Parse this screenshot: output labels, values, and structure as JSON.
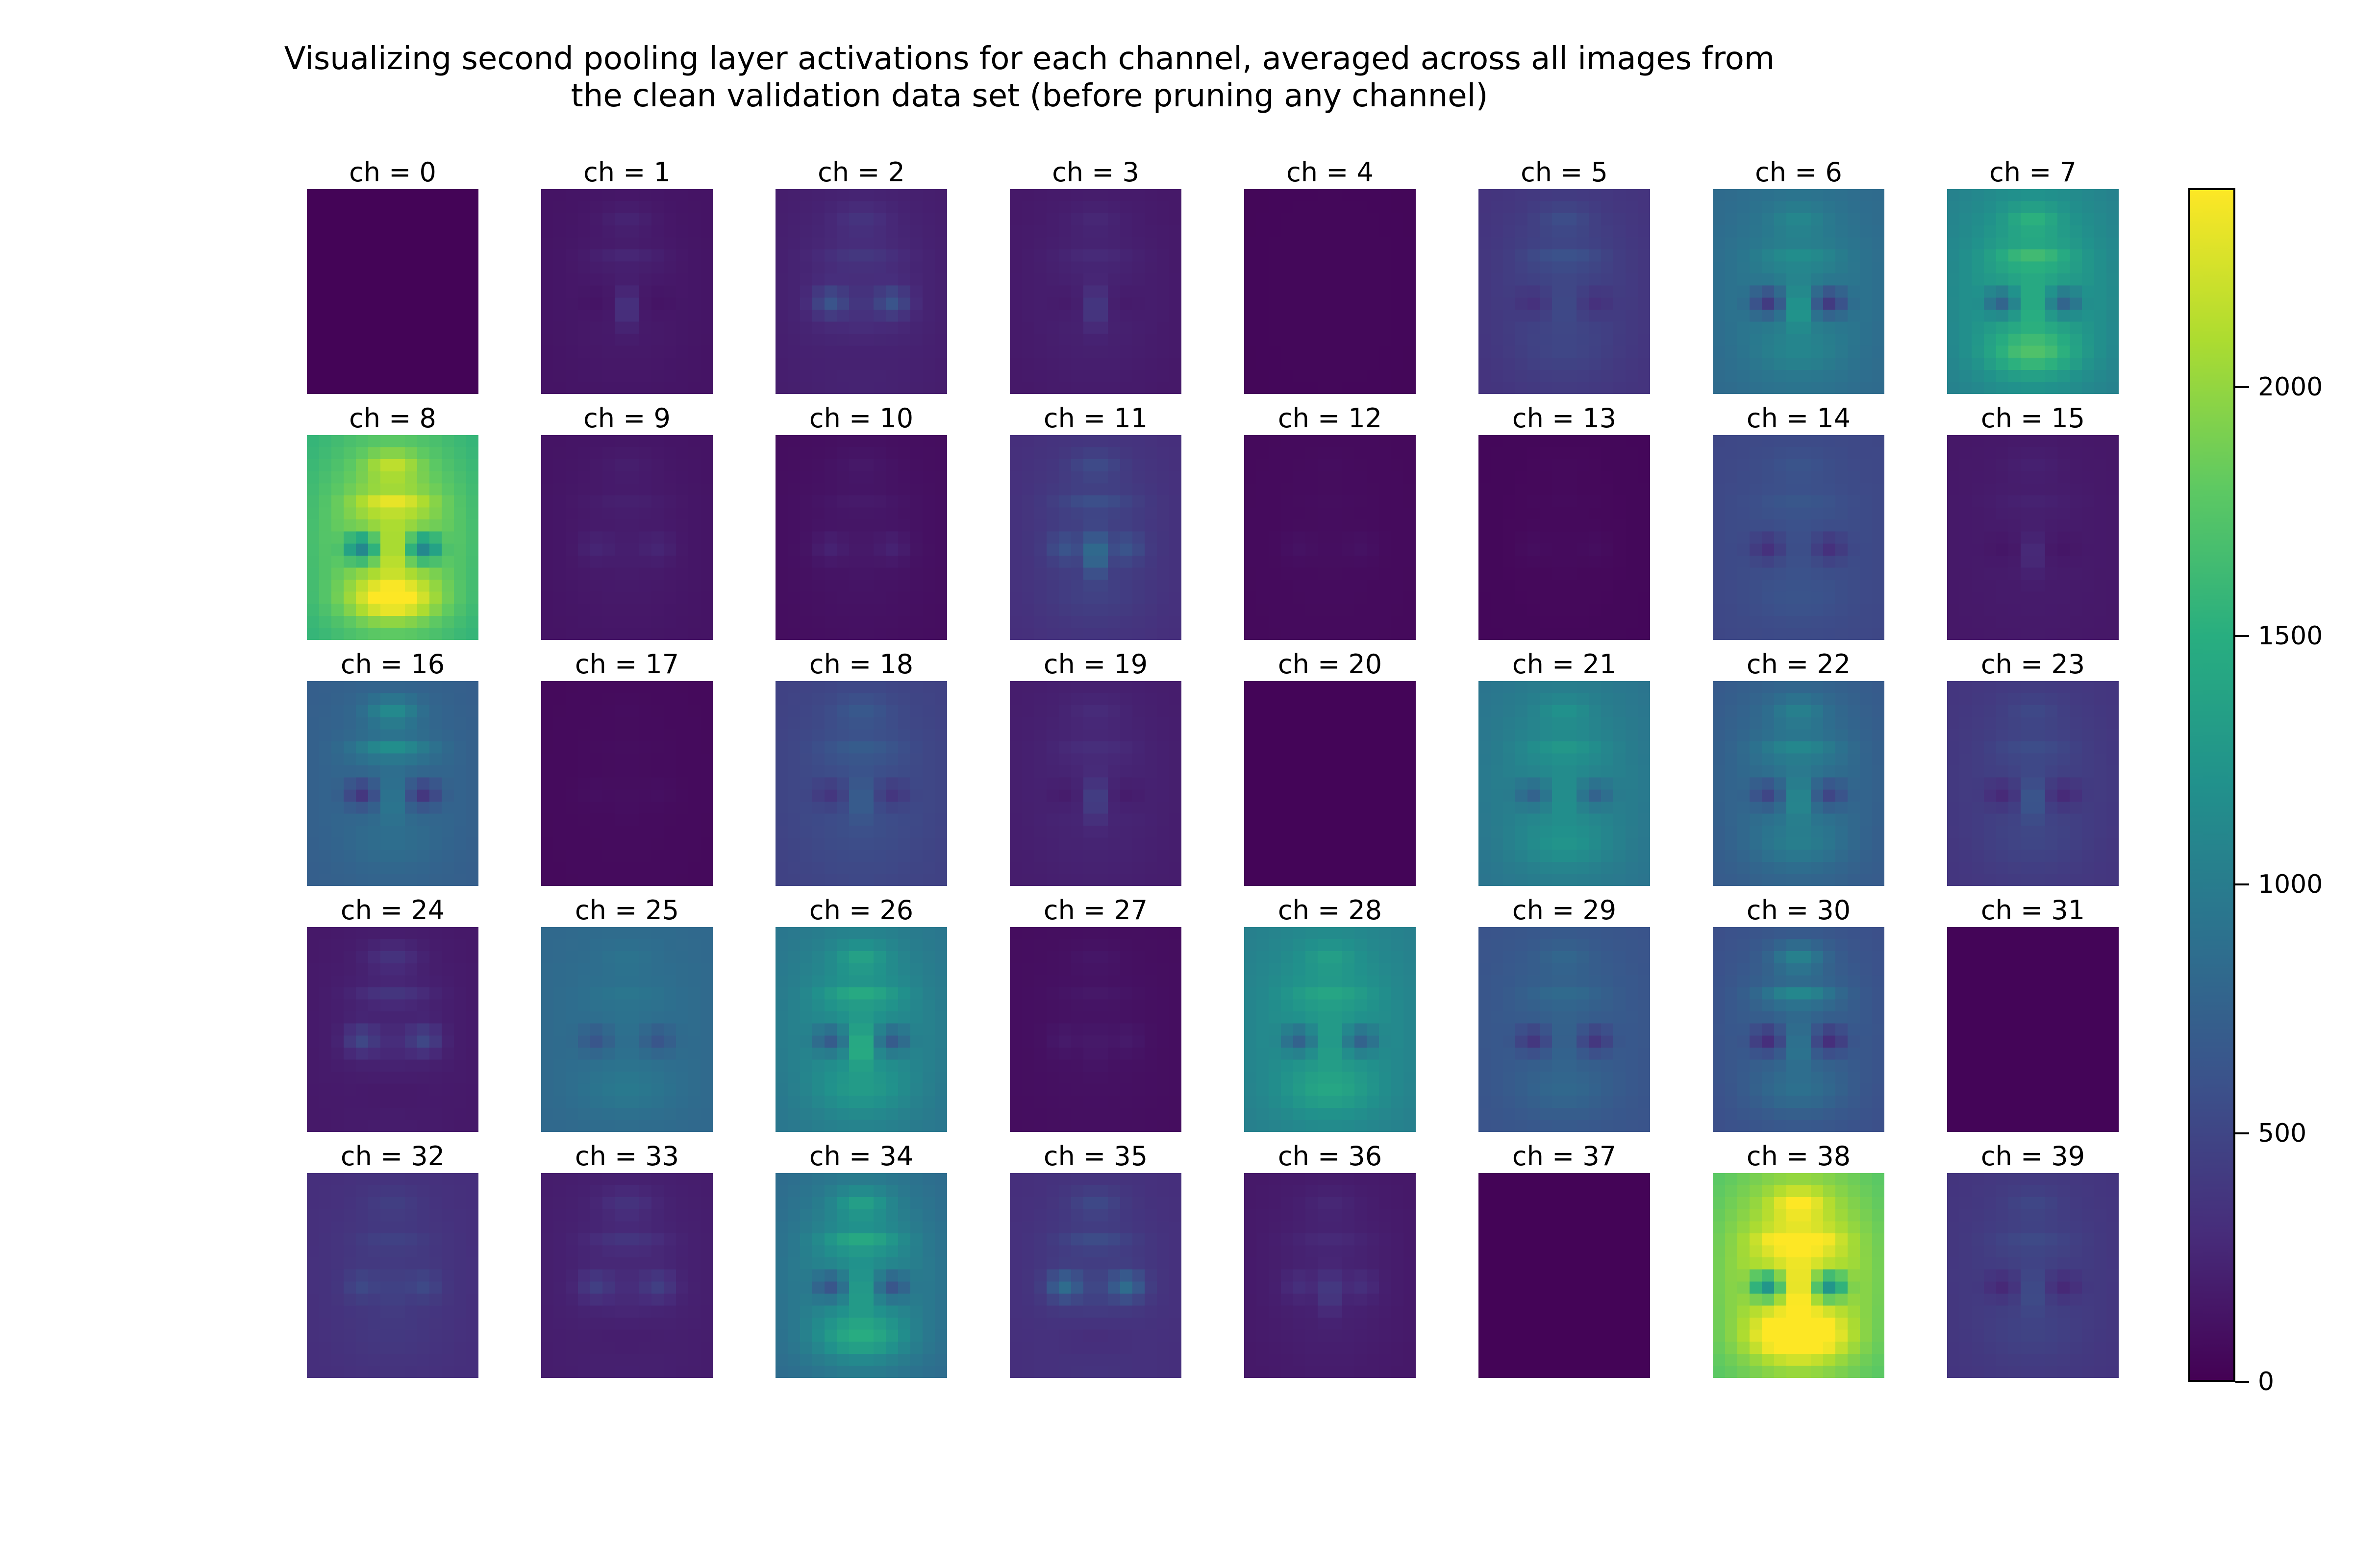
{
  "chart_data": {
    "type": "heatmap",
    "title_lines": [
      "Visualizing second pooling layer activations for each channel, averaged across all images from",
      "the clean validation data set (before pruning any channel)"
    ],
    "colormap": "viridis",
    "color_range": [
      0,
      2400
    ],
    "colorbar_ticks": [
      0,
      500,
      1000,
      1500,
      2000
    ],
    "colorbar_labels": [
      "0",
      "500",
      "1000",
      "1500",
      "2000"
    ],
    "grid_rows": 5,
    "grid_cols": 8,
    "panels": [
      {
        "label": "ch = 0",
        "bg": 20,
        "face": 0,
        "eyes": 0,
        "nose": 0,
        "brow": 0,
        "chin": 0
      },
      {
        "label": "ch = 1",
        "bg": 120,
        "face": 60,
        "eyes": -40,
        "nose": 250,
        "brow": 80,
        "chin": 0
      },
      {
        "label": "ch = 2",
        "bg": 180,
        "face": 120,
        "eyes": 350,
        "nose": 50,
        "brow": 100,
        "chin": -40
      },
      {
        "label": "ch = 3",
        "bg": 150,
        "face": 80,
        "eyes": -40,
        "nose": 250,
        "brow": 60,
        "chin": 0
      },
      {
        "label": "ch = 4",
        "bg": 40,
        "face": 10,
        "eyes": 0,
        "nose": 0,
        "brow": 0,
        "chin": 0
      },
      {
        "label": "ch = 5",
        "bg": 330,
        "face": 180,
        "eyes": -150,
        "nose": 50,
        "brow": 120,
        "chin": 40
      },
      {
        "label": "ch = 6",
        "bg": 800,
        "face": 250,
        "eyes": -600,
        "nose": 400,
        "brow": 150,
        "chin": 100
      },
      {
        "label": "ch = 7",
        "bg": 1000,
        "face": 450,
        "eyes": -600,
        "nose": 150,
        "brow": 250,
        "chin": 400
      },
      {
        "label": "ch = 8",
        "bg": 1500,
        "face": 600,
        "eyes": -900,
        "nose": 200,
        "brow": 300,
        "chin": 600
      },
      {
        "label": "ch = 9",
        "bg": 120,
        "face": 60,
        "eyes": 80,
        "nose": 20,
        "brow": 40,
        "chin": 0
      },
      {
        "label": "ch = 10",
        "bg": 80,
        "face": 60,
        "eyes": 100,
        "nose": 20,
        "brow": 40,
        "chin": 0
      },
      {
        "label": "ch = 11",
        "bg": 300,
        "face": 150,
        "eyes": 200,
        "nose": 600,
        "brow": 150,
        "chin": 50
      },
      {
        "label": "ch = 12",
        "bg": 60,
        "face": 20,
        "eyes": 40,
        "nose": 10,
        "brow": 10,
        "chin": 0
      },
      {
        "label": "ch = 13",
        "bg": 40,
        "face": 20,
        "eyes": 30,
        "nose": 10,
        "brow": 10,
        "chin": 0
      },
      {
        "label": "ch = 14",
        "bg": 500,
        "face": 100,
        "eyes": -250,
        "nose": 0,
        "brow": 60,
        "chin": 50
      },
      {
        "label": "ch = 15",
        "bg": 150,
        "face": 40,
        "eyes": -40,
        "nose": 150,
        "brow": 40,
        "chin": 0
      },
      {
        "label": "ch = 16",
        "bg": 700,
        "face": 150,
        "eyes": -450,
        "nose": 200,
        "brow": 350,
        "chin": 50
      },
      {
        "label": "ch = 17",
        "bg": 60,
        "face": 20,
        "eyes": 20,
        "nose": 20,
        "brow": 10,
        "chin": 0
      },
      {
        "label": "ch = 18",
        "bg": 450,
        "face": 150,
        "eyes": -200,
        "nose": 200,
        "brow": 120,
        "chin": 0
      },
      {
        "label": "ch = 19",
        "bg": 180,
        "face": 80,
        "eyes": -60,
        "nose": 300,
        "brow": 60,
        "chin": 0
      },
      {
        "label": "ch = 20",
        "bg": 30,
        "face": 0,
        "eyes": 0,
        "nose": 0,
        "brow": 0,
        "chin": 0
      },
      {
        "label": "ch = 21",
        "bg": 900,
        "face": 250,
        "eyes": -350,
        "nose": 100,
        "brow": 150,
        "chin": 150
      },
      {
        "label": "ch = 22",
        "bg": 650,
        "face": 300,
        "eyes": -400,
        "nose": 300,
        "brow": 200,
        "chin": 150
      },
      {
        "label": "ch = 23",
        "bg": 350,
        "face": 150,
        "eyes": -200,
        "nose": 250,
        "brow": 80,
        "chin": 40
      },
      {
        "label": "ch = 24",
        "bg": 150,
        "face": 80,
        "eyes": 300,
        "nose": 50,
        "brow": 150,
        "chin": -40
      },
      {
        "label": "ch = 25",
        "bg": 800,
        "face": 100,
        "eyes": -250,
        "nose": 0,
        "brow": 50,
        "chin": 100
      },
      {
        "label": "ch = 26",
        "bg": 900,
        "face": 350,
        "eyes": -500,
        "nose": 450,
        "brow": 250,
        "chin": 150
      },
      {
        "label": "ch = 27",
        "bg": 80,
        "face": 40,
        "eyes": 60,
        "nose": 60,
        "brow": 40,
        "chin": 0
      },
      {
        "label": "ch = 28",
        "bg": 1000,
        "face": 300,
        "eyes": -500,
        "nose": 100,
        "brow": 150,
        "chin": 200
      },
      {
        "label": "ch = 29",
        "bg": 600,
        "face": 150,
        "eyes": -350,
        "nose": 50,
        "brow": 100,
        "chin": 100
      },
      {
        "label": "ch = 30",
        "bg": 550,
        "face": 250,
        "eyes": -450,
        "nose": 250,
        "brow": 350,
        "chin": 150
      },
      {
        "label": "ch = 31",
        "bg": 30,
        "face": 0,
        "eyes": 0,
        "nose": 0,
        "brow": 0,
        "chin": 0
      },
      {
        "label": "ch = 32",
        "bg": 300,
        "face": 100,
        "eyes": 150,
        "nose": 80,
        "brow": 80,
        "chin": 20
      },
      {
        "label": "ch = 33",
        "bg": 180,
        "face": 80,
        "eyes": 200,
        "nose": 30,
        "brow": 120,
        "chin": -40
      },
      {
        "label": "ch = 34",
        "bg": 800,
        "face": 400,
        "eyes": -500,
        "nose": 250,
        "brow": 300,
        "chin": 400
      },
      {
        "label": "ch = 35",
        "bg": 300,
        "face": 120,
        "eyes": 450,
        "nose": 60,
        "brow": 150,
        "chin": -80
      },
      {
        "label": "ch = 36",
        "bg": 150,
        "face": 80,
        "eyes": 100,
        "nose": 250,
        "brow": 60,
        "chin": 0
      },
      {
        "label": "ch = 37",
        "bg": 20,
        "face": 0,
        "eyes": 0,
        "nose": 0,
        "brow": 0,
        "chin": 0
      },
      {
        "label": "ch = 38",
        "bg": 1700,
        "face": 650,
        "eyes": -1000,
        "nose": 200,
        "brow": 350,
        "chin": 650
      },
      {
        "label": "ch = 39",
        "bg": 350,
        "face": 120,
        "eyes": -180,
        "nose": 150,
        "brow": 80,
        "chin": 40
      }
    ]
  }
}
